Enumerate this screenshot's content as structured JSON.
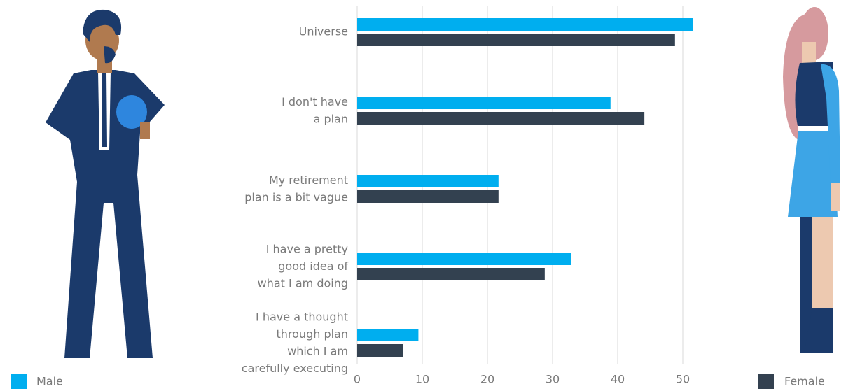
{
  "chart_data": {
    "type": "barh",
    "categories": [
      "Universe",
      "I don't have\na plan",
      "My retirement\nplan is a bit vague",
      "I have a pretty\ngood idea of\nwhat I am doing",
      "I have a thought\nthrough plan\nwhich I am\ncarefully executing"
    ],
    "series": [
      {
        "name": "Male",
        "color": "#00aeef",
        "values": [
          51.6,
          38.9,
          21.7,
          32.9,
          9.4
        ]
      },
      {
        "name": "Female",
        "color": "#334150",
        "values": [
          48.8,
          44.1,
          21.7,
          28.8,
          7.0
        ]
      }
    ],
    "xlim": [
      0,
      52
    ],
    "xticks": [
      0,
      10,
      20,
      30,
      40,
      50
    ],
    "grid": true
  }
}
